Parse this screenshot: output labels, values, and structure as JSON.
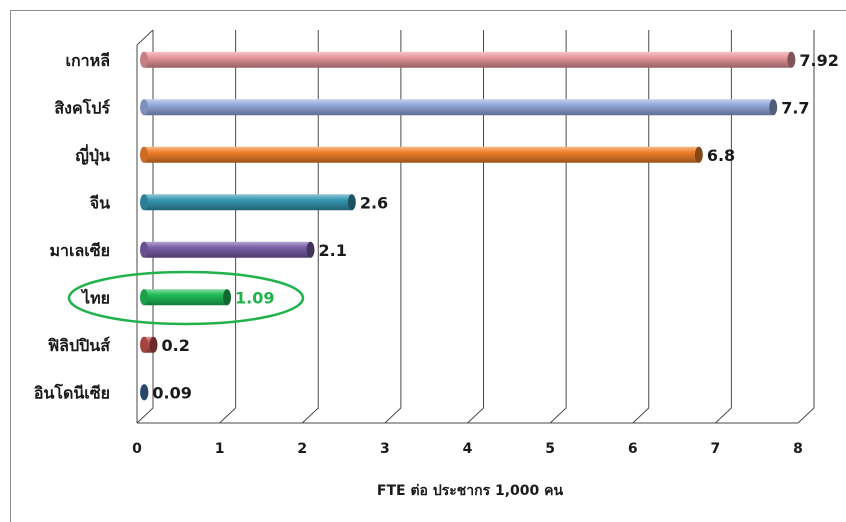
{
  "chart_data": {
    "type": "bar",
    "orientation": "horizontal",
    "style": "3d-cylinder",
    "categories": [
      "เกาหลี",
      "สิงคโปร์",
      "ญี่ปุ่น",
      "จีน",
      "มาเลเซีย",
      "ไทย",
      "ฟิลิปปินส์",
      "อินโดนีเซีย"
    ],
    "values": [
      7.92,
      7.7,
      6.8,
      2.6,
      2.1,
      1.09,
      0.2,
      0.09
    ],
    "value_labels": [
      "7.92",
      "7.7",
      "6.8",
      "2.6",
      "2.1",
      "1.09",
      "0.2",
      "0.09"
    ],
    "colors": [
      "#e9979b",
      "#93a9dc",
      "#f07f2a",
      "#3597b2",
      "#7a5ea8",
      "#1fbb57",
      "#c0504d",
      "#4f81bd"
    ],
    "highlight": {
      "category": "ไทย",
      "color": "#22b24c"
    },
    "xlabel": "FTE ต่อ ประชากร 1,000 คน",
    "xlim": [
      0,
      8
    ],
    "xticks": [
      "0",
      "1",
      "2",
      "3",
      "4",
      "5",
      "6",
      "7",
      "8"
    ],
    "grid": true
  }
}
